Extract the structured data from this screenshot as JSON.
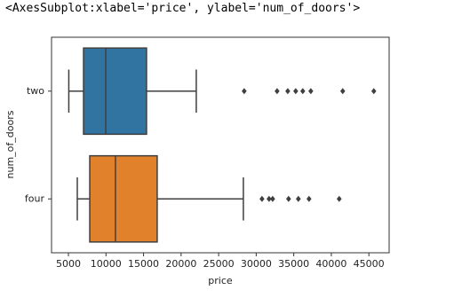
{
  "header_text": "<AxesSubplot:xlabel='price', ylabel='num_of_doors'>",
  "chart_data": {
    "type": "boxplot",
    "orientation": "horizontal",
    "xlabel": "price",
    "ylabel": "num_of_doors",
    "xlim": [
      2750,
      47700
    ],
    "xticks": [
      5000,
      10000,
      15000,
      20000,
      25000,
      30000,
      35000,
      40000,
      45000
    ],
    "grid": false,
    "boxes": [
      {
        "name": "two",
        "color": "#3274a1",
        "whislo": 5050,
        "q1": 7010,
        "median": 9970,
        "q3": 15400,
        "whishi": 22020,
        "fliers": [
          28400,
          32780,
          34200,
          35260,
          36200,
          37270,
          41520,
          45660
        ]
      },
      {
        "name": "four",
        "color": "#e1812c",
        "whislo": 6180,
        "q1": 7840,
        "median": 11260,
        "q3": 16820,
        "whishi": 28290,
        "fliers": [
          30770,
          31710,
          32190,
          34310,
          35610,
          37030,
          41050
        ]
      }
    ]
  }
}
